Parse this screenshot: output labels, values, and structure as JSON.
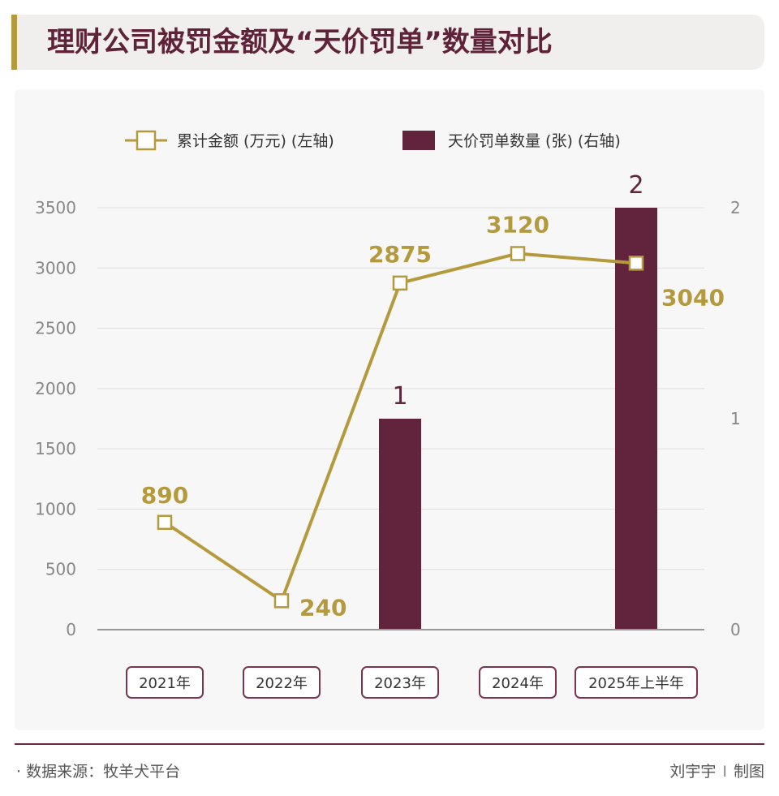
{
  "header": {
    "title": "理财公司被罚金额及“天价罚单”数量对比"
  },
  "footer": {
    "source": "· 数据来源：牧羊犬平台",
    "author": "刘宇宇",
    "separator": "I",
    "made": "制图"
  },
  "colors": {
    "line": "#b49a3c",
    "bar": "#62243c",
    "grid": "#dddddd",
    "axis_text": "#888888",
    "label_box": "#7a3450"
  },
  "chart_data": {
    "type": "bar",
    "categories": [
      "2021年",
      "2022年",
      "2023年",
      "2024年",
      "2025年上半年"
    ],
    "series": [
      {
        "name": "累计金额 (万元) (左轴)",
        "type": "line",
        "axis": "left",
        "values": [
          890,
          240,
          2875,
          3120,
          3040
        ],
        "labels": [
          "890",
          "240",
          "2875",
          "3120",
          "3040"
        ]
      },
      {
        "name": "天价罚单数量 (张) (右轴)",
        "type": "bar",
        "axis": "right",
        "values": [
          0,
          0,
          1,
          0,
          2
        ],
        "labels": [
          "",
          "",
          "1",
          "",
          "2"
        ]
      }
    ],
    "left_axis": {
      "ylim": [
        0,
        3500
      ],
      "ticks": [
        "0",
        "500",
        "1000",
        "1500",
        "2000",
        "2500",
        "3000",
        "3500"
      ]
    },
    "right_axis": {
      "ylim": [
        0,
        2
      ],
      "ticks": [
        "0",
        "1",
        "2"
      ]
    },
    "grid": true,
    "legend": "top-center"
  }
}
